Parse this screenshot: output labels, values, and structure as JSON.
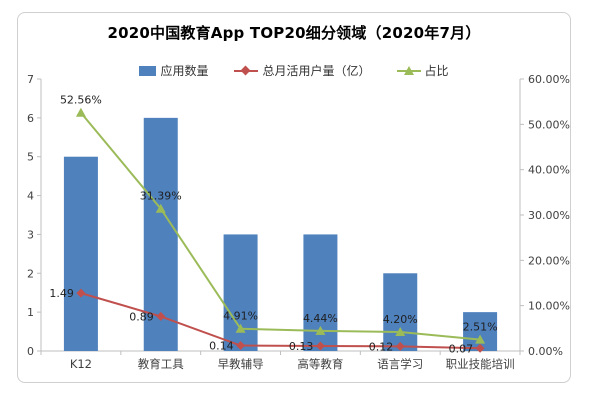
{
  "chart_data": {
    "type": "bar+line",
    "title": "2020中国教育App TOP20细分领域（2020年7月）",
    "categories": [
      "K12",
      "教育工具",
      "早教辅导",
      "高等教育",
      "语言学习",
      "职业技能培训"
    ],
    "series": [
      {
        "name": "应用数量",
        "type": "bar",
        "axis": "left",
        "color": "#4F81BD",
        "values": [
          5,
          6,
          3,
          3,
          2,
          1
        ]
      },
      {
        "name": "总月活用户量（亿）",
        "type": "line",
        "axis": "left",
        "color": "#C0504D",
        "marker": "diamond",
        "values": [
          1.49,
          0.89,
          0.14,
          0.13,
          0.12,
          0.07
        ],
        "labels": [
          "1.49",
          "0.89",
          "0.14",
          "0.13",
          "0.12",
          "0.07"
        ]
      },
      {
        "name": "占比",
        "type": "line",
        "axis": "right",
        "color": "#9BBB59",
        "marker": "triangle",
        "values": [
          52.56,
          31.39,
          4.91,
          4.44,
          4.2,
          2.51
        ],
        "labels": [
          "52.56%",
          "31.39%",
          "4.91%",
          "4.44%",
          "4.20%",
          "2.51%"
        ]
      }
    ],
    "left_axis": {
      "min": 0,
      "max": 7,
      "step": 1,
      "tick_labels": [
        "0",
        "1",
        "2",
        "3",
        "4",
        "5",
        "6",
        "7"
      ]
    },
    "right_axis": {
      "min": 0,
      "max": 60,
      "step": 10,
      "tick_labels": [
        "0.00%",
        "10.00%",
        "20.00%",
        "30.00%",
        "40.00%",
        "50.00%",
        "60.00%"
      ]
    },
    "grid": false,
    "legend_position": "top-center",
    "colors": {
      "axis": "#BFBFBF",
      "axis_text": "#404040",
      "data_label": "#1F1F1F"
    }
  }
}
